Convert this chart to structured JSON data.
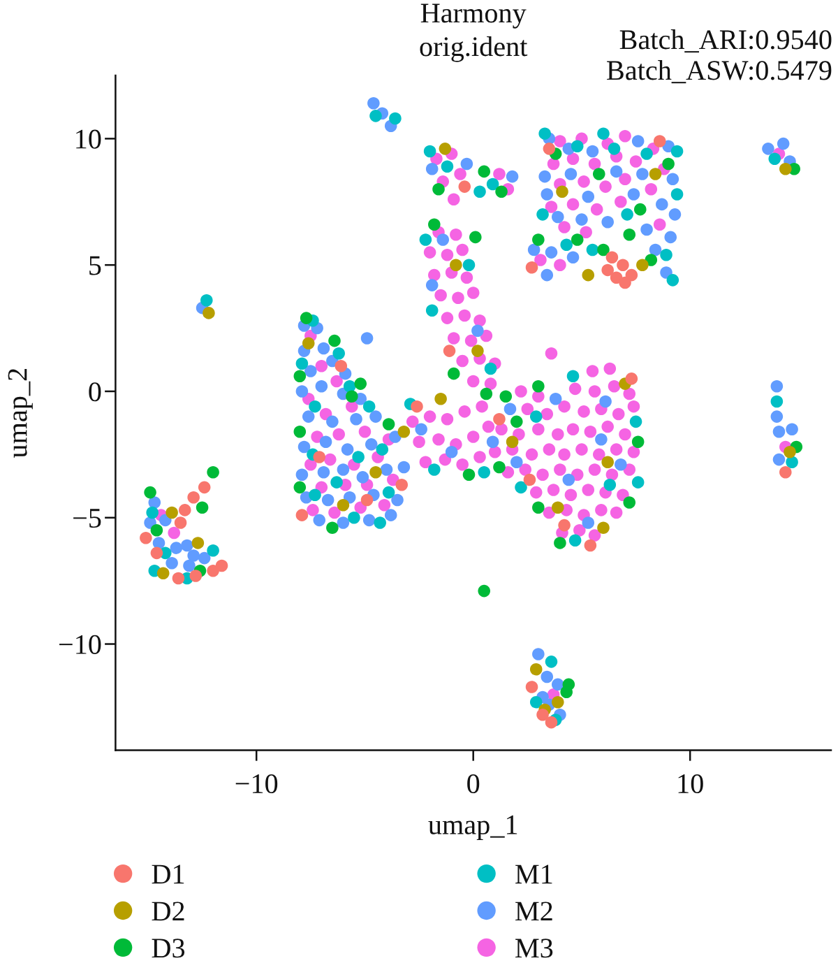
{
  "chart_data": {
    "type": "scatter",
    "title": "Harmony",
    "subtitle": "orig.ident",
    "xlabel": "umap_1",
    "ylabel": "umap_2",
    "annotations": [
      "Batch_ARI:0.9540",
      "Batch_ASW:0.5479"
    ],
    "xlim": [
      -16.5,
      16.5
    ],
    "ylim": [
      -14.2,
      12.5
    ],
    "xticks": [
      {
        "value": -10,
        "label": "−10"
      },
      0,
      10
    ],
    "yticks": [
      {
        "value": -10,
        "label": "−10"
      },
      {
        "value": -5,
        "label": "−5"
      },
      0,
      5,
      10
    ],
    "grid": false,
    "legend": "bottom",
    "marker": "circle",
    "series": [
      {
        "name": "D1",
        "color": "#f8766d",
        "x": [
          -15.1,
          -14.6,
          -13.6,
          -12.8,
          -12.0,
          -11.6,
          -13.3,
          -12.9,
          -12.4,
          -13.5,
          6.4,
          6.9,
          7.3,
          6.6,
          7.0,
          6.2,
          -7.1,
          -4.9,
          -6.1,
          -3.3,
          -7.9,
          2.6,
          4.2,
          1.2,
          -2.6,
          -1.1,
          7.3,
          5.4,
          3.5,
          8.6,
          2.7,
          3.2,
          3.6,
          2.7,
          14.4,
          -0.4
        ],
        "values": [
          -5.8,
          -6.4,
          -7.4,
          -7.3,
          -7.1,
          -6.9,
          -4.7,
          -4.2,
          -3.8,
          -5.2,
          5.3,
          5.0,
          4.6,
          4.5,
          4.3,
          4.8,
          -2.6,
          -4.3,
          1.0,
          -3.7,
          -4.9,
          -3.5,
          -5.3,
          -1.1,
          -0.6,
          1.6,
          0.5,
          -6.1,
          9.6,
          9.9,
          4.9,
          -12.8,
          -13.1,
          -11.7,
          -3.2,
          8.1
        ]
      },
      {
        "name": "D2",
        "color": "#b79f00",
        "x": [
          -14.3,
          -13.9,
          -12.7,
          -7.6,
          -6.0,
          -4.5,
          -3.2,
          -1.5,
          0.2,
          1.8,
          3.9,
          6.2,
          7.0,
          5.3,
          7.8,
          4.1,
          8.4,
          3.3,
          3.9,
          14.6,
          14.4,
          -1.3,
          -0.8,
          -12.2,
          2.9,
          6.0
        ],
        "values": [
          -7.2,
          -4.8,
          -6.0,
          1.9,
          -4.5,
          -3.2,
          -1.6,
          -0.3,
          1.6,
          -2.0,
          -4.6,
          -2.8,
          0.3,
          4.6,
          5.0,
          7.9,
          8.6,
          -12.6,
          -12.3,
          -2.4,
          8.8,
          9.6,
          5.0,
          3.1,
          -11.0,
          -5.4
        ]
      },
      {
        "name": "D3",
        "color": "#00ba38",
        "x": [
          -7.7,
          -8.0,
          -8.0,
          -8.0,
          -6.4,
          -5.2,
          -3.9,
          -6.5,
          -5.6,
          -14.9,
          -14.6,
          -12.6,
          -12.5,
          -12.0,
          3.8,
          5.8,
          7.2,
          6.0,
          8.2,
          4.8,
          3.0,
          9.0,
          7.7,
          -1.6,
          0.5,
          1.3,
          -1.8,
          0.1,
          -0.9,
          0.6,
          1.5,
          2.0,
          3.0,
          7.6,
          4.0,
          3.0,
          1.2,
          -0.2,
          7.2,
          0.5,
          4.4,
          4.3,
          14.9,
          14.8
        ],
        "values": [
          2.9,
          0.6,
          -1.6,
          -3.8,
          2.0,
          0.3,
          -1.3,
          -5.4,
          -0.2,
          -4.0,
          -5.5,
          -7.1,
          -4.6,
          -3.2,
          9.4,
          8.6,
          6.2,
          5.6,
          5.2,
          6.0,
          6.0,
          9.0,
          7.2,
          8.0,
          8.7,
          7.9,
          6.6,
          6.1,
          0.7,
          -0.1,
          -0.2,
          -1.2,
          0.2,
          -2.0,
          -6.0,
          -4.6,
          -3.0,
          -3.3,
          -4.4,
          -7.9,
          -11.6,
          -11.9,
          -2.2,
          8.8
        ]
      },
      {
        "name": "M1",
        "color": "#00bfc4",
        "x": [
          -7.4,
          -7.9,
          -6.2,
          -7.3,
          -5.7,
          -4.8,
          -7.4,
          -5.3,
          -4.2,
          -7.3,
          -5.5,
          -3.9,
          -6.3,
          -4.3,
          -14.8,
          -14.2,
          -13.2,
          -12.0,
          -14.7,
          3.3,
          4.8,
          6.0,
          8.0,
          9.4,
          3.2,
          9.4,
          8.9,
          9.2,
          4.3,
          5.5,
          7.1,
          6.5,
          -2.0,
          -1.2,
          0.9,
          0.3,
          -2.2,
          -0.2,
          -1.9,
          0.8,
          -2.9,
          -1.8,
          0.5,
          2.9,
          4.6,
          7.5,
          6.3,
          4.7,
          2.2,
          7.6,
          -4.5,
          -3.6,
          -12.3,
          13.9,
          14.0,
          14.7,
          3.6,
          2.9,
          3.8
        ],
        "values": [
          2.8,
          1.1,
          1.5,
          -0.6,
          0.2,
          -0.6,
          -2.5,
          -2.6,
          -2.3,
          -4.1,
          -5.0,
          -4.0,
          -3.6,
          -5.2,
          -4.8,
          -6.4,
          -7.4,
          -6.3,
          -7.1,
          10.2,
          9.7,
          10.2,
          9.4,
          9.5,
          7.0,
          7.8,
          5.4,
          4.4,
          5.8,
          5.6,
          7.0,
          9.6,
          9.5,
          8.9,
          8.2,
          7.9,
          6.0,
          5.0,
          3.2,
          0.9,
          -0.5,
          -3.1,
          -3.2,
          -1.0,
          0.6,
          -1.2,
          -3.7,
          -5.9,
          -3.8,
          -3.6,
          10.9,
          10.8,
          3.6,
          9.2,
          -0.4,
          -2.8,
          -10.7,
          -12.3,
          -13.0
        ]
      },
      {
        "name": "M2",
        "color": "#619cff",
        "x": [
          -7.8,
          -7.2,
          -7.8,
          -6.9,
          -7.5,
          -6.5,
          -5.9,
          -7.9,
          -7.0,
          -6.0,
          -5.2,
          -7.6,
          -6.5,
          -5.4,
          -4.5,
          -7.8,
          -6.8,
          -5.8,
          -4.7,
          -3.6,
          -7.9,
          -6.9,
          -6.0,
          -5.1,
          -4.0,
          -3.2,
          -7.7,
          -6.7,
          -5.7,
          -4.6,
          -3.5,
          -7.1,
          -6.0,
          -4.8,
          -3.8,
          -14.7,
          -14.9,
          -14.2,
          -14.5,
          -13.7,
          -13.9,
          -13.1,
          -12.4,
          -12.9,
          -13.2,
          3.5,
          4.4,
          5.5,
          7.6,
          9.0,
          3.3,
          4.5,
          6.6,
          7.8,
          9.2,
          3.4,
          5.3,
          7.4,
          8.7,
          9.3,
          3.9,
          5.0,
          6.2,
          8.0,
          9.1,
          2.8,
          3.6,
          4.6,
          8.4,
          8.9,
          3.4,
          -2.4,
          -1.0,
          0.9,
          2.0,
          3.8,
          4.4,
          5.9,
          6.8,
          5.3,
          6.1,
          1.7,
          -1.9,
          0.2,
          -1.4,
          -1.9,
          -0.3,
          1.8,
          -4.6,
          -4.2,
          -3.8,
          13.6,
          14.6,
          14.3,
          14.0,
          14.0,
          14.1,
          14.7,
          14.1,
          3.0,
          3.4,
          3.9,
          3.5,
          4.0,
          3.2,
          -12.5,
          -4.9
        ],
        "values": [
          2.6,
          2.5,
          1.6,
          1.7,
          0.8,
          1.2,
          0.7,
          0.0,
          0.2,
          -0.1,
          -0.3,
          -1.0,
          -1.2,
          -1.1,
          -1.0,
          -2.2,
          -2.0,
          -2.3,
          -2.1,
          -1.8,
          -3.3,
          -3.2,
          -3.1,
          -3.4,
          -3.1,
          -3.0,
          -4.2,
          -4.3,
          -4.2,
          -4.1,
          -4.3,
          -5.1,
          -5.2,
          -5.1,
          -4.9,
          -4.4,
          -5.2,
          -5.1,
          -6.0,
          -6.2,
          -6.8,
          -6.9,
          -6.6,
          -6.5,
          -6.1,
          10.0,
          9.6,
          9.5,
          9.9,
          9.7,
          8.5,
          8.6,
          8.7,
          8.6,
          8.4,
          7.8,
          7.7,
          7.8,
          7.4,
          7.0,
          6.9,
          6.8,
          6.7,
          6.4,
          6.1,
          5.6,
          5.5,
          5.3,
          5.6,
          4.7,
          4.6,
          -1.5,
          -2.4,
          -2.0,
          -2.8,
          -0.3,
          -3.5,
          -1.9,
          -2.9,
          -5.2,
          -0.4,
          -0.7,
          4.2,
          2.4,
          6.0,
          8.8,
          9.0,
          8.5,
          11.4,
          11.0,
          10.5,
          9.6,
          9.1,
          9.8,
          0.2,
          -1.0,
          -1.6,
          -1.5,
          -2.7,
          -10.4,
          -11.3,
          -11.6,
          -12.4,
          -12.8,
          -12.1,
          3.3,
          2.1
        ]
      },
      {
        "name": "M3",
        "color": "#f564e3",
        "x": [
          5.5,
          6.3,
          2.2,
          3.0,
          4.7,
          5.6,
          6.5,
          7.2,
          2.5,
          3.4,
          4.2,
          5.1,
          5.9,
          6.7,
          7.4,
          1.3,
          2.1,
          3.0,
          3.9,
          4.6,
          5.4,
          6.2,
          7.0,
          1.0,
          1.8,
          2.7,
          3.5,
          4.2,
          5.0,
          5.8,
          6.6,
          7.4,
          1.6,
          2.4,
          3.2,
          4.0,
          4.8,
          5.6,
          6.4,
          7.2,
          2.9,
          3.7,
          4.5,
          5.3,
          6.1,
          6.9,
          3.5,
          4.3,
          5.1,
          5.9,
          6.6,
          4.1,
          4.9,
          5.6,
          -1.6,
          -0.8,
          -2.0,
          -1.2,
          -0.5,
          -1.8,
          -1.0,
          -0.3,
          -1.5,
          -0.7,
          0.0,
          -1.2,
          -0.4,
          0.3,
          -0.9,
          -0.1,
          0.6,
          -0.5,
          0.3,
          1.0,
          0.0,
          0.8,
          -2.8,
          -2.0,
          -1.2,
          -0.4,
          0.4,
          -2.5,
          -1.6,
          -0.8,
          0.0,
          0.7,
          -2.2,
          -1.3,
          -0.5,
          0.3,
          -7.5,
          -7.0,
          -6.3,
          -7.6,
          -6.8,
          -5.6,
          -7.2,
          -6.2,
          -5.0,
          -3.9,
          -7.5,
          -6.6,
          -5.5,
          -4.4,
          -7.0,
          -5.9,
          -4.9,
          -3.7,
          -7.4,
          -6.4,
          -5.2,
          -4.1,
          4.0,
          5.0,
          6.2,
          7.0,
          8.3,
          3.7,
          4.6,
          5.6,
          6.6,
          7.5,
          8.8,
          4.0,
          5.1,
          6.1,
          7.0,
          8.2,
          3.6,
          4.6,
          5.7,
          6.8,
          4.2,
          5.2,
          8.6,
          3.1,
          4.0,
          -1.7,
          -1.0,
          -0.6,
          -1.4,
          -0.9,
          1.2,
          1.6,
          3.6,
          14.1,
          14.4,
          -13.8,
          -14.4,
          3.7
        ],
        "values": [
          0.8,
          0.9,
          0.0,
          -0.2,
          0.1,
          0.0,
          0.2,
          -0.1,
          -0.7,
          -0.9,
          -0.6,
          -0.8,
          -0.7,
          -0.9,
          -0.6,
          -1.5,
          -1.7,
          -1.5,
          -1.7,
          -1.5,
          -1.6,
          -1.4,
          -1.7,
          -2.4,
          -2.3,
          -2.5,
          -2.3,
          -2.5,
          -2.3,
          -2.5,
          -2.3,
          -2.4,
          -3.2,
          -3.1,
          -3.3,
          -3.1,
          -3.3,
          -3.1,
          -3.3,
          -3.1,
          -4.0,
          -3.9,
          -4.1,
          -3.9,
          -4.0,
          -4.1,
          -4.8,
          -4.7,
          -4.9,
          -4.7,
          -4.8,
          -5.6,
          -5.5,
          -5.7,
          6.3,
          6.2,
          5.5,
          5.4,
          5.6,
          4.6,
          4.7,
          4.5,
          3.8,
          3.7,
          3.9,
          2.9,
          3.0,
          2.8,
          2.1,
          2.0,
          2.2,
          1.2,
          1.3,
          1.1,
          0.4,
          0.3,
          -1.2,
          -1.0,
          -1.1,
          -0.8,
          -0.6,
          -2.0,
          -1.9,
          -2.1,
          -1.8,
          -1.4,
          -2.8,
          -2.7,
          -2.9,
          -2.6,
          2.2,
          1.0,
          0.4,
          -0.3,
          -0.9,
          -0.6,
          -1.8,
          -1.7,
          -1.6,
          -1.9,
          -2.9,
          -2.7,
          -2.9,
          -2.6,
          -3.8,
          -3.7,
          -3.7,
          -3.5,
          -4.7,
          -4.8,
          -4.6,
          -4.5,
          9.9,
          10.0,
          9.8,
          10.1,
          9.6,
          9.0,
          9.2,
          9.0,
          9.3,
          9.1,
          8.8,
          8.2,
          8.3,
          8.1,
          8.4,
          8.0,
          7.3,
          7.4,
          7.2,
          7.5,
          6.5,
          6.3,
          6.6,
          5.2,
          5.0,
          9.2,
          9.4,
          8.6,
          8.3,
          7.6,
          8.6,
          8.0,
          1.5,
          9.4,
          -2.2,
          -5.6,
          -4.9,
          -12.0
        ]
      }
    ]
  }
}
